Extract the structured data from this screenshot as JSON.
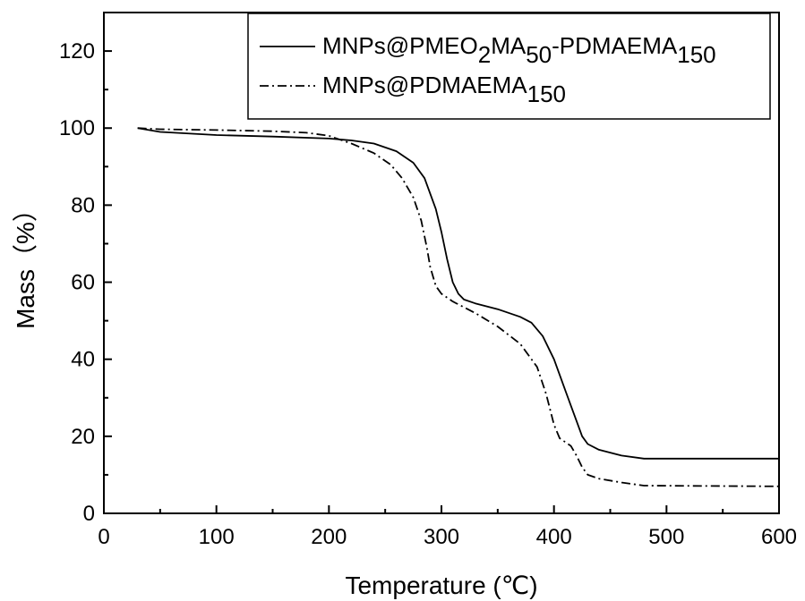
{
  "chart_data": {
    "type": "line",
    "xlabel": "Temperature (℃)",
    "ylabel": "Mass（%）",
    "xlim": [
      0,
      600
    ],
    "ylim": [
      0,
      130
    ],
    "x_ticks": [
      0,
      100,
      200,
      300,
      400,
      500,
      600
    ],
    "y_ticks": [
      0,
      20,
      40,
      60,
      80,
      100,
      120
    ],
    "grid": false,
    "legend_position": "top-right",
    "series": [
      {
        "name": "MNPs@PMEO2MA50-PDMAEMA150",
        "legend_label": {
          "base": "MNPs@PMEO",
          "sub1": "2",
          "mid": "MA",
          "sub2": "50",
          "mid2": "-PDMAEMA",
          "sub3": "150"
        },
        "style": "solid",
        "color": "#000000",
        "points": [
          [
            30,
            100
          ],
          [
            50,
            99
          ],
          [
            100,
            98.2
          ],
          [
            150,
            97.8
          ],
          [
            200,
            97.3
          ],
          [
            220,
            96.8
          ],
          [
            240,
            96
          ],
          [
            260,
            94
          ],
          [
            275,
            91
          ],
          [
            285,
            87
          ],
          [
            295,
            79
          ],
          [
            300,
            73
          ],
          [
            305,
            66
          ],
          [
            310,
            60
          ],
          [
            315,
            57
          ],
          [
            320,
            55.5
          ],
          [
            330,
            54.5
          ],
          [
            350,
            53
          ],
          [
            370,
            51
          ],
          [
            380,
            49.5
          ],
          [
            390,
            46
          ],
          [
            400,
            40
          ],
          [
            410,
            32
          ],
          [
            420,
            24
          ],
          [
            425,
            20
          ],
          [
            430,
            18
          ],
          [
            440,
            16.5
          ],
          [
            460,
            15
          ],
          [
            480,
            14.2
          ],
          [
            600,
            14.2
          ]
        ]
      },
      {
        "name": "MNPs@PDMAEMA150",
        "legend_label": {
          "base": "MNPs@PDMAEMA",
          "sub1": "150"
        },
        "style": "dashdot",
        "color": "#000000",
        "points": [
          [
            30,
            100
          ],
          [
            50,
            99.7
          ],
          [
            100,
            99.5
          ],
          [
            150,
            99.2
          ],
          [
            180,
            98.8
          ],
          [
            200,
            98
          ],
          [
            210,
            97
          ],
          [
            220,
            96
          ],
          [
            240,
            93.5
          ],
          [
            255,
            90.5
          ],
          [
            265,
            87
          ],
          [
            275,
            82
          ],
          [
            282,
            76
          ],
          [
            287,
            69
          ],
          [
            290,
            64
          ],
          [
            295,
            59
          ],
          [
            300,
            57
          ],
          [
            310,
            55
          ],
          [
            330,
            52
          ],
          [
            350,
            48.5
          ],
          [
            370,
            44
          ],
          [
            385,
            38
          ],
          [
            393,
            31
          ],
          [
            400,
            23
          ],
          [
            405,
            19.5
          ],
          [
            415,
            17.5
          ],
          [
            420,
            15
          ],
          [
            425,
            12
          ],
          [
            430,
            10
          ],
          [
            440,
            9
          ],
          [
            460,
            8
          ],
          [
            480,
            7.2
          ],
          [
            600,
            7
          ]
        ]
      }
    ]
  }
}
